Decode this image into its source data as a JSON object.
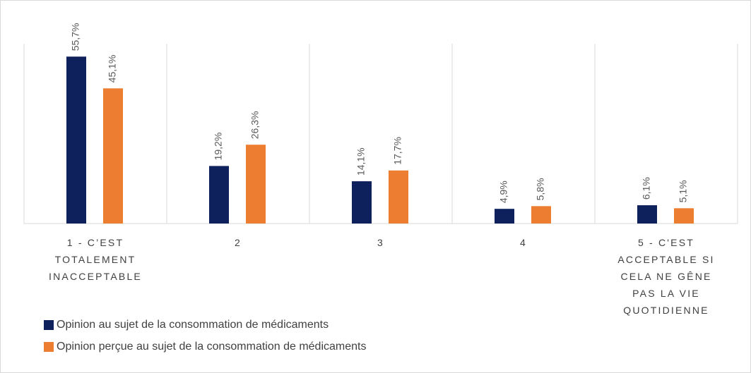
{
  "chart_data": {
    "type": "bar",
    "categories": [
      "1 - C’EST TOTALEMENT INACCEPTABLE",
      "2",
      "3",
      "4",
      "5 - C'EST ACCEPTABLE SI CELA NE GÊNE PAS LA VIE QUOTIDIENNE"
    ],
    "series": [
      {
        "name": "Opinion au sujet de la consommation de médicaments",
        "color": "#0e215c",
        "values": [
          55.7,
          19.2,
          14.1,
          4.9,
          6.1
        ],
        "value_labels": [
          "55,7%",
          "19,2%",
          "14,1%",
          "4,9%",
          "6,1%"
        ]
      },
      {
        "name": "Opinion perçue au sujet de la consommation de médicaments",
        "color": "#ed7d31",
        "values": [
          45.1,
          26.3,
          17.7,
          5.8,
          5.1
        ],
        "value_labels": [
          "45,1%",
          "26,3%",
          "17,7%",
          "5,8%",
          "5,1%"
        ]
      }
    ],
    "ylim": [
      0,
      60
    ]
  }
}
